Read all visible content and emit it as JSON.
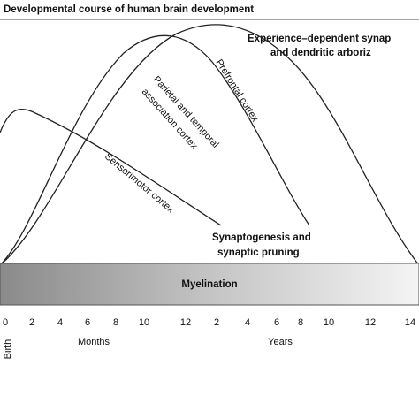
{
  "title": "Developmental course of human brain development",
  "experience_label": [
    "Experience–dependent synap",
    "and dendritic arboriz"
  ],
  "curve_labels": {
    "prefrontal": "Prefrontal cortex",
    "parietal": [
      "Parietal and temporal",
      "association cortex"
    ],
    "sensorimotor": "Sensorimotor cortex"
  },
  "synaptogenesis_label": [
    "Synaptogenesis and",
    "synaptic pruning"
  ],
  "myelination": "Myelination",
  "x_ticks": [
    "0",
    "2",
    "4",
    "6",
    "8",
    "10",
    "12",
    "2",
    "4",
    "6",
    "8",
    "10",
    "12",
    "14"
  ],
  "birth": "Birth",
  "months": "Months",
  "years": "Years"
}
